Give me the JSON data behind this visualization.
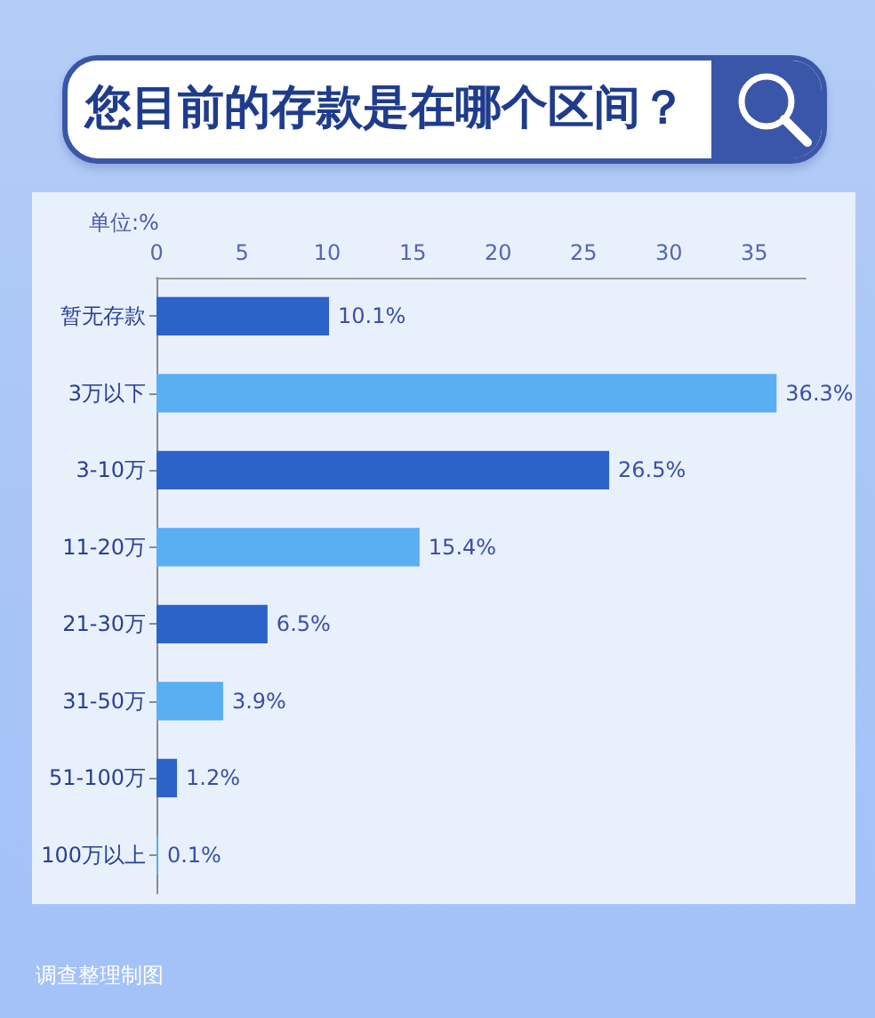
{
  "chart_data": {
    "type": "bar",
    "orientation": "horizontal",
    "title": "您目前的存款是在哪个区间？",
    "xlabel": "单位:%",
    "categories": [
      "暂无存款",
      "3万以下",
      "3-10万",
      "11-20万",
      "21-30万",
      "31-50万",
      "51-100万",
      "100万以上"
    ],
    "values": [
      10.1,
      36.3,
      26.5,
      15.4,
      6.5,
      3.9,
      1.2,
      0.1
    ],
    "colors": [
      "#2b63c9",
      "#5aaef2",
      "#2b63c9",
      "#5aaef2",
      "#2b63c9",
      "#5aaef2",
      "#2b63c9",
      "#5aaef2"
    ],
    "value_labels": [
      "10.1%",
      "36.3%",
      "26.5%",
      "15.4%",
      "6.5%",
      "3.9%",
      "1.2%",
      "0.1%"
    ],
    "xlim": [
      0,
      38
    ],
    "xticks": [
      0,
      5,
      10,
      15,
      20,
      25,
      30,
      35
    ],
    "annotations": [
      "调查整理制图"
    ]
  }
}
